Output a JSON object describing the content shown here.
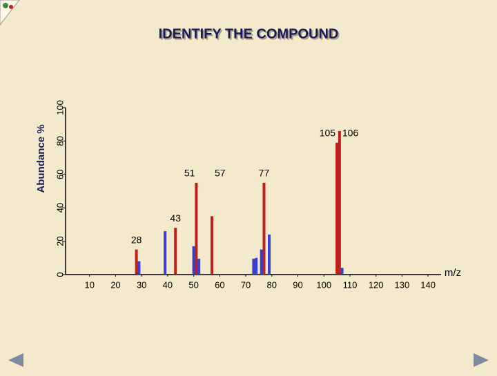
{
  "chart_data": {
    "type": "spectrum",
    "title": "IDENTIFY THE COMPOUND",
    "y_label": "Abundance %",
    "x_label": "m/z",
    "xlim": [
      0,
      145
    ],
    "xticks": [
      10,
      20,
      30,
      40,
      50,
      60,
      70,
      80,
      90,
      100,
      110,
      120,
      130,
      140
    ],
    "ylim": [
      0,
      100
    ],
    "yticks": [
      0,
      20,
      40,
      60,
      80,
      100
    ],
    "series": [
      {
        "color": "#c0201a",
        "labelled": true,
        "x": [
          28,
          43,
          51,
          57,
          77,
          105,
          106
        ],
        "values": [
          15,
          28,
          55,
          35,
          55,
          79,
          86
        ]
      },
      {
        "color": "#3a3fd0",
        "labelled": false,
        "x": [
          29,
          39,
          50,
          52,
          73,
          74,
          76,
          79,
          107
        ],
        "values": [
          8,
          26,
          17,
          9.5,
          9.5,
          10,
          15,
          24,
          4
        ]
      }
    ]
  }
}
